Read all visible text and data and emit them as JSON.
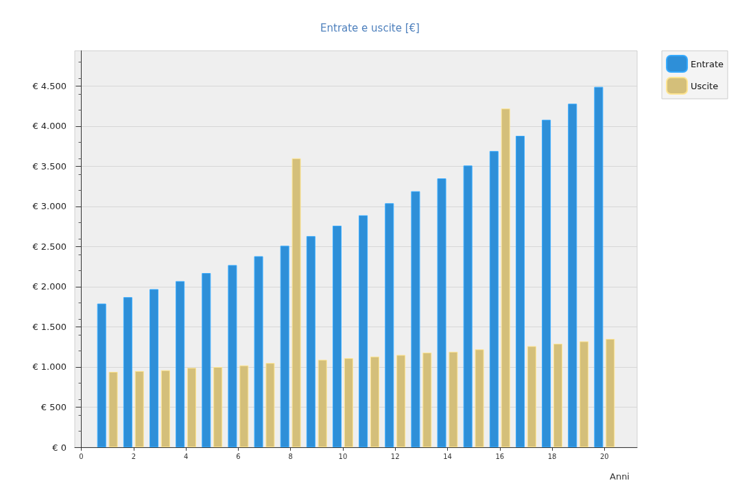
{
  "chart_data": {
    "type": "bar",
    "title": "Entrate e uscite [€]",
    "xlabel": "Anni",
    "x": [
      1,
      2,
      3,
      4,
      5,
      6,
      7,
      8,
      9,
      10,
      11,
      12,
      13,
      14,
      15,
      16,
      17,
      18,
      19,
      20
    ],
    "series": [
      {
        "name": "Entrate",
        "color": "#2e8fd8",
        "values": [
          1790,
          1870,
          1970,
          2070,
          2170,
          2270,
          2380,
          2510,
          2630,
          2760,
          2890,
          3040,
          3190,
          3350,
          3510,
          3690,
          3880,
          4080,
          4280,
          4490
        ]
      },
      {
        "name": "Uscite",
        "color": "#d4bf7a",
        "values": [
          940,
          950,
          960,
          990,
          1000,
          1020,
          1050,
          3600,
          1090,
          1110,
          1130,
          1150,
          1180,
          1190,
          1220,
          4220,
          1260,
          1290,
          1320,
          1350
        ]
      }
    ],
    "xlim": [
      -0.25,
      21.25
    ],
    "xticks": [
      0,
      2,
      4,
      6,
      8,
      10,
      12,
      14,
      16,
      18,
      20
    ],
    "ylim": [
      0,
      4940
    ],
    "yticks": [
      {
        "value": 0,
        "label": "€ 0"
      },
      {
        "value": 500,
        "label": "€ 500"
      },
      {
        "value": 1000,
        "label": "€ 1.000"
      },
      {
        "value": 1500,
        "label": "€ 1.500"
      },
      {
        "value": 2000,
        "label": "€ 2.000"
      },
      {
        "value": 2500,
        "label": "€ 2.500"
      },
      {
        "value": 3000,
        "label": "€ 3.000"
      },
      {
        "value": 3500,
        "label": "€ 3.500"
      },
      {
        "value": 4000,
        "label": "€ 4.000"
      },
      {
        "value": 4500,
        "label": "€ 4.500"
      }
    ],
    "grid": "y",
    "legend": "top right"
  }
}
